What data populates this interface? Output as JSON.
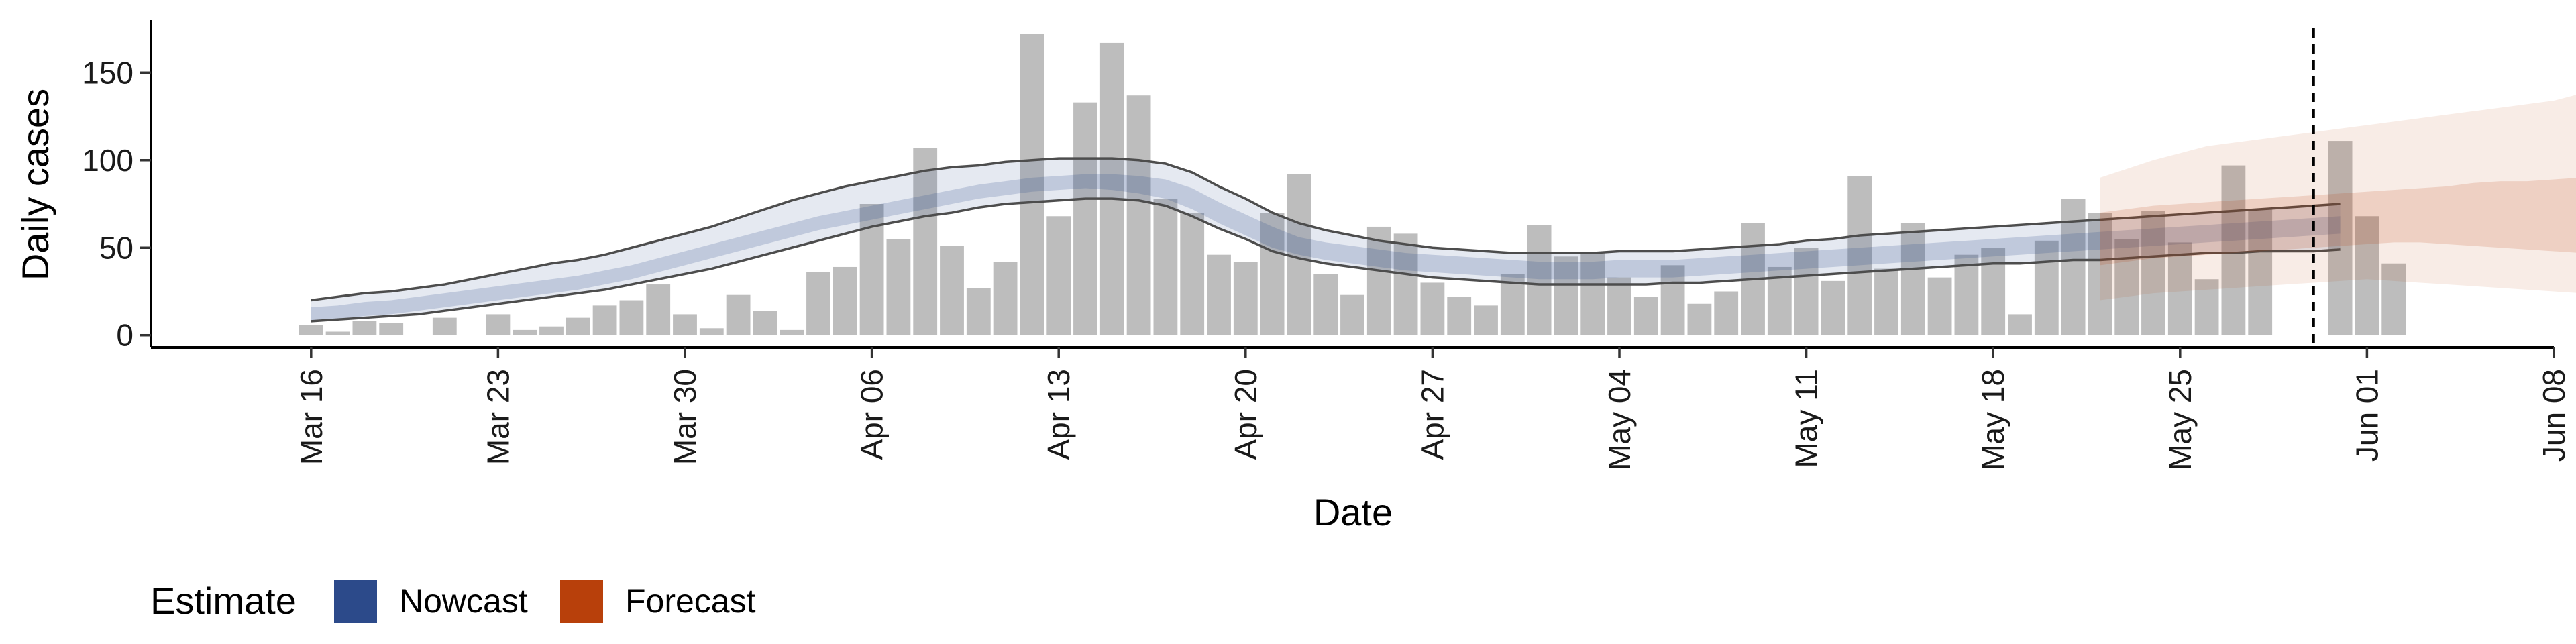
{
  "chart_data": {
    "type": "bar",
    "xlabel": "Date",
    "ylabel": "Daily cases",
    "x_axis_range": [
      "2020-03-10",
      "2020-06-08"
    ],
    "ylim": [
      -7,
      180
    ],
    "y_ticks": [
      0,
      50,
      100,
      150
    ],
    "x_ticks": [
      {
        "date": "2020-03-16",
        "label": "Mar 16"
      },
      {
        "date": "2020-03-23",
        "label": "Mar 23"
      },
      {
        "date": "2020-03-30",
        "label": "Mar 30"
      },
      {
        "date": "2020-04-06",
        "label": "Apr 06"
      },
      {
        "date": "2020-04-13",
        "label": "Apr 13"
      },
      {
        "date": "2020-04-20",
        "label": "Apr 20"
      },
      {
        "date": "2020-04-27",
        "label": "Apr 27"
      },
      {
        "date": "2020-05-04",
        "label": "May 04"
      },
      {
        "date": "2020-05-11",
        "label": "May 11"
      },
      {
        "date": "2020-05-18",
        "label": "May 18"
      },
      {
        "date": "2020-05-25",
        "label": "May 25"
      },
      {
        "date": "2020-06-01",
        "label": "Jun 01"
      },
      {
        "date": "2020-06-08",
        "label": "Jun 08"
      }
    ],
    "grid": false,
    "bars": {
      "start_date": "2020-03-16",
      "color": "#bdbdbd",
      "values": [
        6,
        2,
        8,
        7,
        0,
        10,
        0,
        12,
        3,
        5,
        10,
        17,
        20,
        29,
        12,
        4,
        23,
        14,
        3,
        36,
        39,
        75,
        55,
        107,
        51,
        27,
        42,
        172,
        68,
        133,
        167,
        137,
        78,
        70,
        46,
        42,
        70,
        92,
        35,
        23,
        62,
        58,
        30,
        22,
        17,
        35,
        63,
        45,
        47,
        33,
        22,
        40,
        18,
        25,
        64,
        39,
        50,
        31,
        91,
        38,
        64,
        33,
        46,
        50,
        12,
        54,
        78,
        70,
        55,
        71,
        53,
        32,
        97,
        72,
        0,
        0,
        111,
        68,
        41
      ]
    },
    "nowcast": {
      "color": "#2c4a8a",
      "start_date": "2020-03-16",
      "median": [
        12,
        13,
        15,
        16,
        18,
        20,
        22,
        24,
        26,
        28,
        30,
        33,
        36,
        40,
        44,
        48,
        52,
        56,
        60,
        64,
        67,
        70,
        73,
        76,
        79,
        82,
        84,
        86,
        87,
        88,
        88,
        87,
        84,
        78,
        70,
        63,
        56,
        51,
        48,
        46,
        44,
        42,
        41,
        40,
        39,
        38,
        37,
        37,
        37,
        38,
        38,
        38,
        39,
        40,
        41,
        42,
        43,
        44,
        45,
        46,
        47,
        48,
        49,
        50,
        51,
        52,
        53,
        54,
        55,
        56,
        57,
        58,
        59,
        60,
        61,
        62,
        63
      ],
      "inner_lower": [
        8,
        9,
        11,
        12,
        14,
        16,
        18,
        20,
        22,
        24,
        26,
        29,
        32,
        36,
        40,
        44,
        48,
        52,
        56,
        60,
        63,
        66,
        69,
        72,
        75,
        78,
        80,
        82,
        83,
        84,
        83,
        81,
        78,
        72,
        64,
        57,
        50,
        46,
        43,
        41,
        39,
        37,
        36,
        35,
        34,
        33,
        32,
        32,
        32,
        33,
        33,
        33,
        34,
        35,
        36,
        37,
        38,
        39,
        40,
        41,
        42,
        43,
        44,
        45,
        46,
        47,
        48,
        49,
        50,
        51,
        52,
        53,
        54,
        55,
        56,
        57,
        58
      ],
      "inner_upper": [
        16,
        17,
        19,
        20,
        22,
        24,
        26,
        28,
        30,
        32,
        34,
        37,
        40,
        44,
        48,
        52,
        56,
        60,
        64,
        68,
        71,
        74,
        77,
        80,
        83,
        86,
        88,
        90,
        91,
        92,
        92,
        91,
        89,
        84,
        76,
        69,
        62,
        56,
        53,
        51,
        49,
        47,
        46,
        45,
        44,
        43,
        42,
        42,
        42,
        43,
        43,
        43,
        44,
        45,
        46,
        47,
        48,
        49,
        50,
        51,
        52,
        53,
        54,
        55,
        56,
        57,
        58,
        59,
        60,
        61,
        62,
        63,
        64,
        65,
        66,
        67,
        68
      ],
      "outer_lower": [
        8,
        9,
        10,
        11,
        12,
        14,
        16,
        18,
        20,
        22,
        24,
        26,
        29,
        32,
        35,
        38,
        42,
        46,
        50,
        54,
        58,
        62,
        65,
        68,
        70,
        73,
        75,
        76,
        77,
        78,
        78,
        77,
        74,
        68,
        61,
        55,
        48,
        44,
        41,
        39,
        37,
        35,
        33,
        32,
        31,
        30,
        29,
        29,
        29,
        29,
        29,
        30,
        30,
        31,
        32,
        33,
        34,
        35,
        36,
        37,
        38,
        39,
        40,
        41,
        41,
        42,
        43,
        43,
        44,
        45,
        46,
        47,
        47,
        48,
        48,
        48,
        49
      ],
      "outer_upper": [
        20,
        22,
        24,
        25,
        27,
        29,
        32,
        35,
        38,
        41,
        43,
        46,
        50,
        54,
        58,
        62,
        67,
        72,
        77,
        81,
        85,
        88,
        91,
        94,
        96,
        97,
        99,
        100,
        101,
        101,
        101,
        100,
        98,
        93,
        85,
        78,
        70,
        64,
        60,
        57,
        54,
        52,
        50,
        49,
        48,
        47,
        47,
        47,
        47,
        48,
        48,
        48,
        49,
        50,
        51,
        52,
        54,
        55,
        57,
        58,
        59,
        60,
        61,
        62,
        63,
        64,
        65,
        66,
        67,
        68,
        69,
        70,
        71,
        72,
        73,
        74,
        75
      ]
    },
    "forecast": {
      "color": "#b8400b",
      "start_date": "2020-05-22",
      "inner_lower": [
        40,
        42,
        44,
        45,
        46,
        47,
        48,
        49,
        50,
        51,
        52,
        53,
        53,
        52,
        51,
        50,
        49,
        48,
        47
      ],
      "inner_upper": [
        70,
        72,
        74,
        75,
        76,
        77,
        78,
        79,
        80,
        81,
        82,
        83,
        84,
        85,
        87,
        88,
        88,
        89,
        90
      ],
      "outer_lower": [
        20,
        22,
        24,
        25,
        26,
        27,
        28,
        29,
        30,
        31,
        32,
        31,
        30,
        29,
        28,
        27,
        26,
        25,
        24
      ],
      "outer_upper": [
        90,
        95,
        100,
        104,
        108,
        110,
        112,
        114,
        116,
        118,
        120,
        122,
        124,
        126,
        128,
        130,
        132,
        134,
        138
      ]
    },
    "vline": {
      "date": "2020-05-30",
      "style": "dashed"
    },
    "legend": {
      "position": "bottom-left",
      "title": "Estimate",
      "entries": [
        {
          "label": "Nowcast",
          "color": "#2c4a8a"
        },
        {
          "label": "Forecast",
          "color": "#b8400b"
        }
      ]
    }
  }
}
